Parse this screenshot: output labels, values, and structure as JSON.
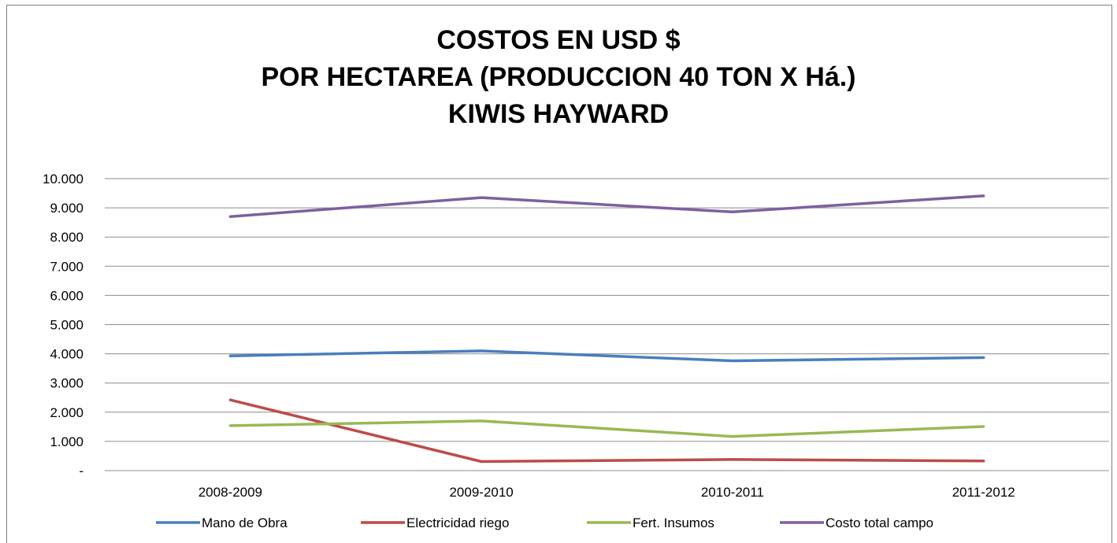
{
  "chart_data": {
    "type": "line",
    "title_lines": [
      "COSTOS EN USD $",
      "POR HECTAREA (PRODUCCION 40 TON X Há.)",
      "KIWIS HAYWARD"
    ],
    "xlabel": "",
    "ylabel": "",
    "categories": [
      "2008-2009",
      "2009-2010",
      "2010-2011",
      "2011-2012"
    ],
    "ylim": [
      0,
      10000
    ],
    "y_ticks": [
      {
        "value": 0,
        "label": "-"
      },
      {
        "value": 1000,
        "label": "1.000"
      },
      {
        "value": 2000,
        "label": "2.000"
      },
      {
        "value": 3000,
        "label": "3.000"
      },
      {
        "value": 4000,
        "label": "4.000"
      },
      {
        "value": 5000,
        "label": "5.000"
      },
      {
        "value": 6000,
        "label": "6.000"
      },
      {
        "value": 7000,
        "label": "7.000"
      },
      {
        "value": 8000,
        "label": "8.000"
      },
      {
        "value": 9000,
        "label": "9.000"
      },
      {
        "value": 10000,
        "label": "10.000"
      }
    ],
    "grid": true,
    "legend_position": "bottom",
    "series": [
      {
        "name": "Mano de Obra",
        "color": "#4a7ebb",
        "values": [
          3930,
          4100,
          3760,
          3870
        ]
      },
      {
        "name": "Electricidad riego",
        "color": "#be4b48",
        "values": [
          2420,
          310,
          380,
          330
        ]
      },
      {
        "name": "Fert. Insumos",
        "color": "#98b954",
        "values": [
          1540,
          1700,
          1170,
          1510
        ]
      },
      {
        "name": "Costo total campo",
        "color": "#7d60a0",
        "values": [
          8700,
          9350,
          8860,
          9410
        ]
      }
    ]
  }
}
